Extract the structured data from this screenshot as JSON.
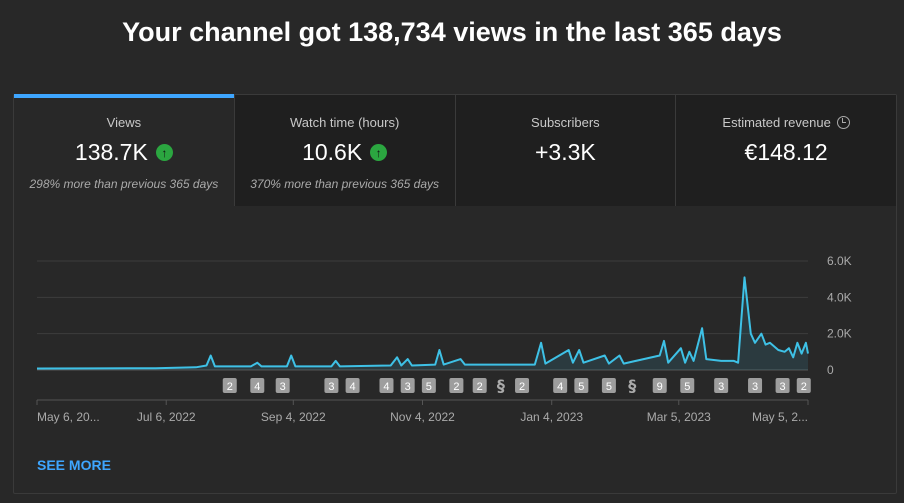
{
  "title": "Your channel got 138,734 views in the last 365 days",
  "tabs": [
    {
      "label": "Views",
      "value": "138.7K",
      "trend": "up",
      "comparison": "298% more than previous 365 days"
    },
    {
      "label": "Watch time (hours)",
      "value": "10.6K",
      "trend": "up",
      "comparison": "370% more than previous 365 days"
    },
    {
      "label": "Subscribers",
      "value": "+3.3K"
    },
    {
      "label": "Estimated revenue",
      "value": "€148.12",
      "icon": "clock-icon"
    }
  ],
  "see_more": "SEE MORE",
  "colors": {
    "accent": "#3ea6ff",
    "line": "#3ec1e6",
    "up": "#2ba640"
  },
  "chart_data": {
    "type": "area",
    "x_range": [
      "2022-05-06",
      "2023-05-05"
    ],
    "ylim": [
      0,
      6000
    ],
    "grid": true,
    "y_ticks": [
      {
        "v": 0,
        "label": "0"
      },
      {
        "v": 2000,
        "label": "2.0K"
      },
      {
        "v": 4000,
        "label": "4.0K"
      },
      {
        "v": 6000,
        "label": "6.0K"
      }
    ],
    "x_ticks": [
      {
        "d": "2022-05-06",
        "label": "May 6, 20..."
      },
      {
        "d": "2022-07-06",
        "label": "Jul 6, 2022"
      },
      {
        "d": "2022-09-04",
        "label": "Sep 4, 2022"
      },
      {
        "d": "2022-11-04",
        "label": "Nov 4, 2022"
      },
      {
        "d": "2023-01-04",
        "label": "Jan 4, 2023"
      },
      {
        "d": "2023-03-05",
        "label": "Mar 5, 2023"
      },
      {
        "d": "2023-05-05",
        "label": "May 5, 2..."
      }
    ],
    "points": [
      [
        "2022-05-06",
        80
      ],
      [
        "2022-06-01",
        90
      ],
      [
        "2022-07-01",
        100
      ],
      [
        "2022-07-20",
        150
      ],
      [
        "2022-07-25",
        250
      ],
      [
        "2022-07-27",
        800
      ],
      [
        "2022-07-29",
        200
      ],
      [
        "2022-08-15",
        200
      ],
      [
        "2022-08-18",
        400
      ],
      [
        "2022-08-20",
        200
      ],
      [
        "2022-09-01",
        200
      ],
      [
        "2022-09-03",
        800
      ],
      [
        "2022-09-05",
        200
      ],
      [
        "2022-09-22",
        200
      ],
      [
        "2022-09-24",
        500
      ],
      [
        "2022-09-26",
        200
      ],
      [
        "2022-10-20",
        250
      ],
      [
        "2022-10-23",
        700
      ],
      [
        "2022-10-25",
        250
      ],
      [
        "2022-10-28",
        600
      ],
      [
        "2022-10-30",
        250
      ],
      [
        "2022-11-10",
        300
      ],
      [
        "2022-11-12",
        1100
      ],
      [
        "2022-11-14",
        300
      ],
      [
        "2022-11-22",
        600
      ],
      [
        "2022-11-24",
        300
      ],
      [
        "2022-12-27",
        300
      ],
      [
        "2022-12-30",
        1500
      ],
      [
        "2023-01-01",
        350
      ],
      [
        "2023-01-12",
        1100
      ],
      [
        "2023-01-14",
        400
      ],
      [
        "2023-01-17",
        1100
      ],
      [
        "2023-01-19",
        400
      ],
      [
        "2023-01-29",
        800
      ],
      [
        "2023-01-31",
        350
      ],
      [
        "2023-02-05",
        800
      ],
      [
        "2023-02-07",
        350
      ],
      [
        "2023-02-24",
        800
      ],
      [
        "2023-02-26",
        1600
      ],
      [
        "2023-02-28",
        400
      ],
      [
        "2023-03-06",
        1200
      ],
      [
        "2023-03-08",
        400
      ],
      [
        "2023-03-10",
        1000
      ],
      [
        "2023-03-12",
        500
      ],
      [
        "2023-03-16",
        2300
      ],
      [
        "2023-03-18",
        600
      ],
      [
        "2023-03-25",
        500
      ],
      [
        "2023-03-31",
        500
      ],
      [
        "2023-04-02",
        400
      ],
      [
        "2023-04-05",
        5100
      ],
      [
        "2023-04-08",
        2000
      ],
      [
        "2023-04-10",
        1500
      ],
      [
        "2023-04-13",
        2000
      ],
      [
        "2023-04-15",
        1400
      ],
      [
        "2023-04-17",
        1500
      ],
      [
        "2023-04-21",
        1100
      ],
      [
        "2023-04-24",
        1000
      ],
      [
        "2023-04-26",
        1200
      ],
      [
        "2023-04-28",
        700
      ],
      [
        "2023-04-30",
        1500
      ],
      [
        "2023-05-02",
        900
      ],
      [
        "2023-05-04",
        1500
      ],
      [
        "2023-05-05",
        900
      ]
    ],
    "video_markers": [
      [
        "2022-08-05",
        "2"
      ],
      [
        "2022-08-18",
        "4"
      ],
      [
        "2022-08-30",
        "3"
      ],
      [
        "2022-09-22",
        "3"
      ],
      [
        "2022-10-02",
        "4"
      ],
      [
        "2022-10-18",
        "4"
      ],
      [
        "2022-10-28",
        "3"
      ],
      [
        "2022-11-07",
        "5"
      ],
      [
        "2022-11-20",
        "2"
      ],
      [
        "2022-12-01",
        "2"
      ],
      [
        "2022-12-11",
        "shorts"
      ],
      [
        "2022-12-21",
        "2"
      ],
      [
        "2023-01-08",
        "4"
      ],
      [
        "2023-01-18",
        "5"
      ],
      [
        "2023-01-31",
        "5"
      ],
      [
        "2023-02-11",
        "shorts"
      ],
      [
        "2023-02-24",
        "9"
      ],
      [
        "2023-03-09",
        "5"
      ],
      [
        "2023-03-25",
        "3"
      ],
      [
        "2023-04-10",
        "3"
      ],
      [
        "2023-04-23",
        "3"
      ],
      [
        "2023-05-03",
        "2"
      ]
    ]
  }
}
